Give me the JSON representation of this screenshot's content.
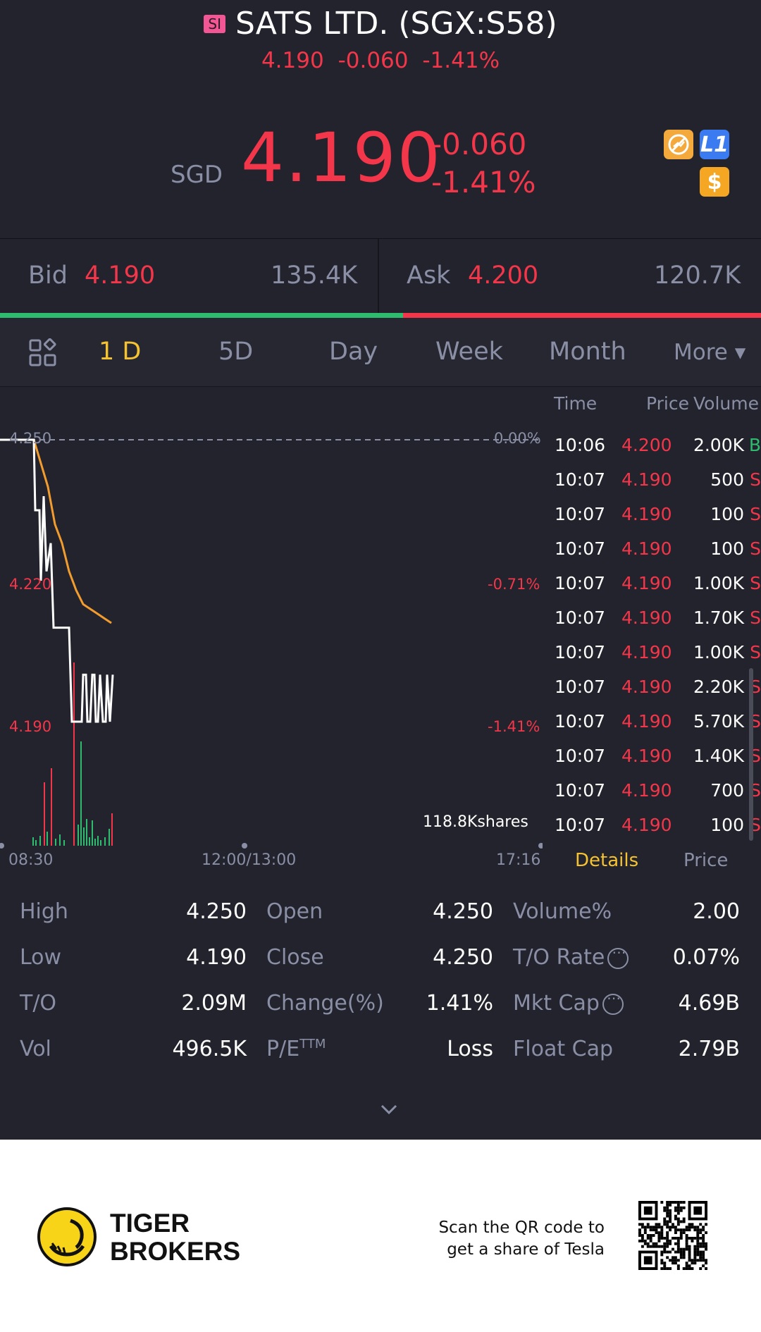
{
  "header": {
    "badge": "SI",
    "title": "SATS LTD. (SGX:S58)",
    "sub_price": "4.190",
    "sub_change": "-0.060",
    "sub_percent": "-1.41%"
  },
  "quote": {
    "currency": "SGD",
    "price": "4.190",
    "change": "-0.060",
    "percent": "-1.41%",
    "badges": [
      "no-short-icon",
      "l1-level-icon",
      "dollar-icon"
    ],
    "badge_l1": "L1",
    "badge_dollar": "$"
  },
  "bidask": {
    "bid_label": "Bid",
    "bid_price": "4.190",
    "bid_size": "135.4K",
    "ask_label": "Ask",
    "ask_price": "4.200",
    "ask_size": "120.7K",
    "bid_ratio": 0.53
  },
  "tabs": [
    "1 D",
    "5D",
    "Day",
    "Week",
    "Month",
    "More ▾"
  ],
  "active_tab": "1 D",
  "chart": {
    "price_labels": [
      "4.250",
      "4.220",
      "4.190"
    ],
    "pct_labels": [
      "0.00%",
      "-0.71%",
      "-1.41%"
    ],
    "time_labels": [
      "08:30",
      "12:00/13:00",
      "17:16"
    ],
    "volume_label": "118.8Kshares"
  },
  "chart_data": {
    "type": "line",
    "ylim": [
      4.19,
      4.25
    ],
    "reference": 4.25,
    "series": [
      {
        "values": [
          4.25,
          4.25,
          4.235,
          4.23,
          4.22,
          4.21,
          4.21,
          4.19,
          4.19,
          4.19,
          4.19,
          4.19
        ]
      },
      {
        "values": [
          4.25,
          4.245,
          4.24,
          4.232,
          4.228,
          4.222,
          4.218,
          4.215,
          4.214,
          4.213,
          4.212,
          4.211
        ]
      }
    ]
  },
  "ticks_header": {
    "time": "Time",
    "price": "Price",
    "volume": "Volume"
  },
  "ticks": [
    {
      "time": "10:06",
      "price": "4.200",
      "vol": "2.00K",
      "side": "B"
    },
    {
      "time": "10:07",
      "price": "4.190",
      "vol": "500",
      "side": "S"
    },
    {
      "time": "10:07",
      "price": "4.190",
      "vol": "100",
      "side": "S"
    },
    {
      "time": "10:07",
      "price": "4.190",
      "vol": "100",
      "side": "S"
    },
    {
      "time": "10:07",
      "price": "4.190",
      "vol": "1.00K",
      "side": "S"
    },
    {
      "time": "10:07",
      "price": "4.190",
      "vol": "1.70K",
      "side": "S"
    },
    {
      "time": "10:07",
      "price": "4.190",
      "vol": "1.00K",
      "side": "S"
    },
    {
      "time": "10:07",
      "price": "4.190",
      "vol": "2.20K",
      "side": "S"
    },
    {
      "time": "10:07",
      "price": "4.190",
      "vol": "5.70K",
      "side": "S"
    },
    {
      "time": "10:07",
      "price": "4.190",
      "vol": "1.40K",
      "side": "S"
    },
    {
      "time": "10:07",
      "price": "4.190",
      "vol": "700",
      "side": "S"
    },
    {
      "time": "10:07",
      "price": "4.190",
      "vol": "100",
      "side": "S"
    }
  ],
  "side_tabs": {
    "details": "Details",
    "price": "Price"
  },
  "stats": [
    [
      {
        "label": "High",
        "value": "4.250"
      },
      {
        "label": "Open",
        "value": "4.250"
      },
      {
        "label": "Volume%",
        "value": "2.00"
      }
    ],
    [
      {
        "label": "Low",
        "value": "4.190"
      },
      {
        "label": "Close",
        "value": "4.250"
      },
      {
        "label": "T/O Rate",
        "value": "0.07%"
      }
    ],
    [
      {
        "label": "T/O",
        "value": "2.09M"
      },
      {
        "label": "Change(%)",
        "value": "1.41%"
      },
      {
        "label": "Mkt Cap",
        "value": "4.69B"
      }
    ],
    [
      {
        "label": "Vol",
        "value": "496.5K"
      },
      {
        "label": "P/E",
        "value": "Loss"
      },
      {
        "label": "Float Cap",
        "value": "2.79B"
      }
    ]
  ],
  "pe_suffix": "TTM",
  "footer": {
    "brand_line1": "TIGER",
    "brand_line2": "BROKERS",
    "scan_line1": "Scan the QR code to",
    "scan_line2": "get a share of Tesla"
  },
  "colors": {
    "up": "#2ebc6e",
    "down": "#f4364a",
    "accent": "#f5c231",
    "bg": "#22232c"
  }
}
